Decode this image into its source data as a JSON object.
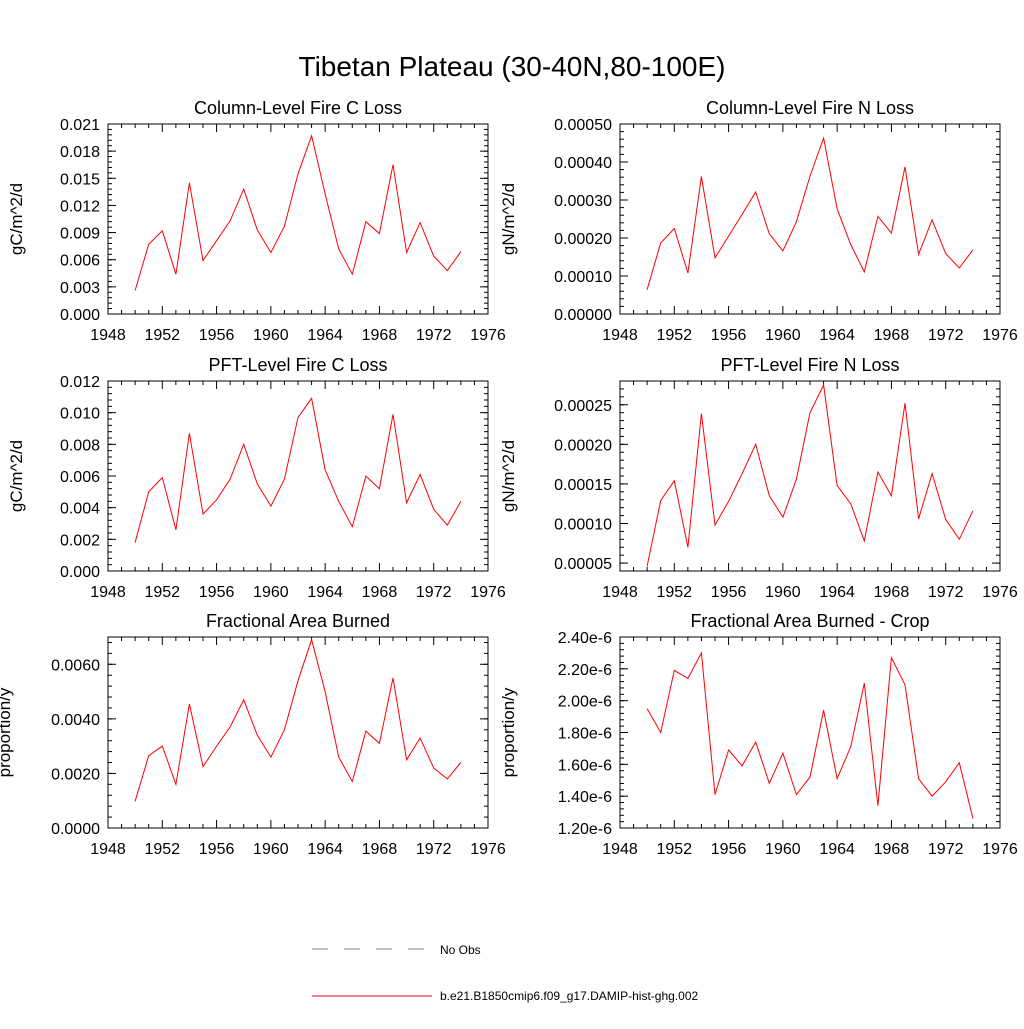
{
  "figure": {
    "title": "Tibetan Plateau (30-40N,80-100E)",
    "line_color": "#ff0000",
    "obs_color": "#7777cc"
  },
  "legend": {
    "entries": [
      {
        "label": "No Obs",
        "style": "dashed",
        "color": "#7777cc"
      },
      {
        "label": "b.e21.B1850cmip6.f09_g17.DAMIP-hist-ghg.002",
        "style": "solid",
        "color": "#ff0000"
      }
    ]
  },
  "chart_data": [
    {
      "type": "line",
      "title": "Column-Level Fire C Loss",
      "ylabel": "gC/m^2/d",
      "xlim": [
        1948,
        1976
      ],
      "xticks": [
        "1948",
        "1952",
        "1956",
        "1960",
        "1964",
        "1968",
        "1972",
        "1976"
      ],
      "ylim": [
        0,
        0.021
      ],
      "yticks": [
        "0.000",
        "0.003",
        "0.006",
        "0.009",
        "0.012",
        "0.015",
        "0.018",
        "0.021"
      ],
      "x": [
        1950,
        1951,
        1952,
        1953,
        1954,
        1955,
        1956,
        1957,
        1958,
        1959,
        1960,
        1961,
        1962,
        1963,
        1964,
        1965,
        1966,
        1967,
        1968,
        1969,
        1970,
        1971,
        1972,
        1973,
        1974
      ],
      "series": [
        {
          "values": [
            0.0026,
            0.0077,
            0.0092,
            0.0044,
            0.0145,
            0.0059,
            0.0081,
            0.0103,
            0.0138,
            0.0093,
            0.0068,
            0.0097,
            0.0155,
            0.0197,
            0.0133,
            0.0072,
            0.0044,
            0.0102,
            0.0089,
            0.0165,
            0.0068,
            0.0101,
            0.0064,
            0.0048,
            0.0069
          ]
        }
      ]
    },
    {
      "type": "line",
      "title": "Column-Level Fire N Loss",
      "ylabel": "gN/m^2/d",
      "xlim": [
        1948,
        1976
      ],
      "xticks": [
        "1948",
        "1952",
        "1956",
        "1960",
        "1964",
        "1968",
        "1972",
        "1976"
      ],
      "ylim": [
        0,
        0.0005
      ],
      "yticks": [
        "0.00000",
        "0.00010",
        "0.00020",
        "0.00030",
        "0.00040",
        "0.00050"
      ],
      "x": [
        1950,
        1951,
        1952,
        1953,
        1954,
        1955,
        1956,
        1957,
        1958,
        1959,
        1960,
        1961,
        1962,
        1963,
        1964,
        1965,
        1966,
        1967,
        1968,
        1969,
        1970,
        1971,
        1972,
        1973,
        1974
      ],
      "series": [
        {
          "values": [
            6.4e-05,
            0.000187,
            0.000225,
            0.000108,
            0.000362,
            0.000148,
            0.000205,
            0.000262,
            0.000321,
            0.000211,
            0.000166,
            0.000243,
            0.000363,
            0.000463,
            0.000277,
            0.000183,
            0.000111,
            0.000257,
            0.000213,
            0.000387,
            0.000157,
            0.000248,
            0.000159,
            0.000121,
            0.000169
          ]
        }
      ]
    },
    {
      "type": "line",
      "title": "PFT-Level Fire C Loss",
      "ylabel": "gC/m^2/d",
      "xlim": [
        1948,
        1976
      ],
      "xticks": [
        "1948",
        "1952",
        "1956",
        "1960",
        "1964",
        "1968",
        "1972",
        "1976"
      ],
      "ylim": [
        0,
        0.012
      ],
      "yticks": [
        "0.000",
        "0.002",
        "0.004",
        "0.006",
        "0.008",
        "0.010",
        "0.012"
      ],
      "x": [
        1950,
        1951,
        1952,
        1953,
        1954,
        1955,
        1956,
        1957,
        1958,
        1959,
        1960,
        1961,
        1962,
        1963,
        1964,
        1965,
        1966,
        1967,
        1968,
        1969,
        1970,
        1971,
        1972,
        1973,
        1974
      ],
      "series": [
        {
          "values": [
            0.0018,
            0.005,
            0.0059,
            0.0026,
            0.0087,
            0.0036,
            0.0045,
            0.0058,
            0.008,
            0.0055,
            0.0041,
            0.0058,
            0.0097,
            0.0109,
            0.0064,
            0.0044,
            0.0028,
            0.006,
            0.0052,
            0.0099,
            0.0043,
            0.0061,
            0.0039,
            0.0029,
            0.0044
          ]
        }
      ]
    },
    {
      "type": "line",
      "title": "PFT-Level Fire N Loss",
      "ylabel": "gN/m^2/d",
      "xlim": [
        1948,
        1976
      ],
      "xticks": [
        "1948",
        "1952",
        "1956",
        "1960",
        "1964",
        "1968",
        "1972",
        "1976"
      ],
      "ylim": [
        4e-05,
        0.00028
      ],
      "yticks": [
        "0.00005",
        "0.00010",
        "0.00015",
        "0.00020",
        "0.00025"
      ],
      "ytick_values": [
        5e-05,
        0.0001,
        0.00015,
        0.0002,
        0.00025
      ],
      "x": [
        1950,
        1951,
        1952,
        1953,
        1954,
        1955,
        1956,
        1957,
        1958,
        1959,
        1960,
        1961,
        1962,
        1963,
        1964,
        1965,
        1966,
        1967,
        1968,
        1969,
        1970,
        1971,
        1972,
        1973,
        1974
      ],
      "series": [
        {
          "values": [
            4.6e-05,
            0.000129,
            0.000154,
            7e-05,
            0.000239,
            9.8e-05,
            0.000128,
            0.000163,
            0.0002,
            0.000135,
            0.000108,
            0.000156,
            0.00024,
            0.000275,
            0.000148,
            0.000125,
            7.8e-05,
            0.000165,
            0.000135,
            0.000252,
            0.000106,
            0.000163,
            0.000105,
            8e-05,
            0.000116
          ]
        }
      ]
    },
    {
      "type": "line",
      "title": "Fractional Area Burned",
      "ylabel": "proportion/y",
      "xlim": [
        1948,
        1976
      ],
      "xticks": [
        "1948",
        "1952",
        "1956",
        "1960",
        "1964",
        "1968",
        "1972",
        "1976"
      ],
      "ylim": [
        0,
        0.007
      ],
      "yticks": [
        "0.0000",
        "0.0020",
        "0.0040",
        "0.0060"
      ],
      "ytick_values": [
        0,
        0.002,
        0.004,
        0.006
      ],
      "x": [
        1950,
        1951,
        1952,
        1953,
        1954,
        1955,
        1956,
        1957,
        1958,
        1959,
        1960,
        1961,
        1962,
        1963,
        1964,
        1965,
        1966,
        1967,
        1968,
        1969,
        1970,
        1971,
        1972,
        1973,
        1974
      ],
      "series": [
        {
          "values": [
            0.00098,
            0.00265,
            0.003,
            0.0016,
            0.00455,
            0.00225,
            0.003,
            0.0037,
            0.0047,
            0.0034,
            0.0026,
            0.0036,
            0.0054,
            0.0069,
            0.005,
            0.0026,
            0.0017,
            0.00355,
            0.0031,
            0.0055,
            0.0025,
            0.0033,
            0.0022,
            0.0018,
            0.0024
          ]
        }
      ]
    },
    {
      "type": "line",
      "title": "Fractional Area Burned - Crop",
      "ylabel": "proportion/y",
      "xlim": [
        1948,
        1976
      ],
      "xticks": [
        "1948",
        "1952",
        "1956",
        "1960",
        "1964",
        "1968",
        "1972",
        "1976"
      ],
      "ylim": [
        1.2e-06,
        2.4e-06
      ],
      "yticks": [
        "1.20e-6",
        "1.40e-6",
        "1.60e-6",
        "1.80e-6",
        "2.00e-6",
        "2.20e-6",
        "2.40e-6"
      ],
      "x": [
        1950,
        1951,
        1952,
        1953,
        1954,
        1955,
        1956,
        1957,
        1958,
        1959,
        1960,
        1961,
        1962,
        1963,
        1964,
        1965,
        1966,
        1967,
        1968,
        1969,
        1970,
        1971,
        1972,
        1973,
        1974
      ],
      "series": [
        {
          "values": [
            1.95e-06,
            1.8e-06,
            2.19e-06,
            2.14e-06,
            2.3e-06,
            1.41e-06,
            1.69e-06,
            1.59e-06,
            1.74e-06,
            1.48e-06,
            1.67e-06,
            1.41e-06,
            1.52e-06,
            1.94e-06,
            1.51e-06,
            1.71e-06,
            2.11e-06,
            1.34e-06,
            2.27e-06,
            2.1e-06,
            1.51e-06,
            1.4e-06,
            1.49e-06,
            1.61e-06,
            1.26e-06
          ]
        }
      ]
    }
  ]
}
